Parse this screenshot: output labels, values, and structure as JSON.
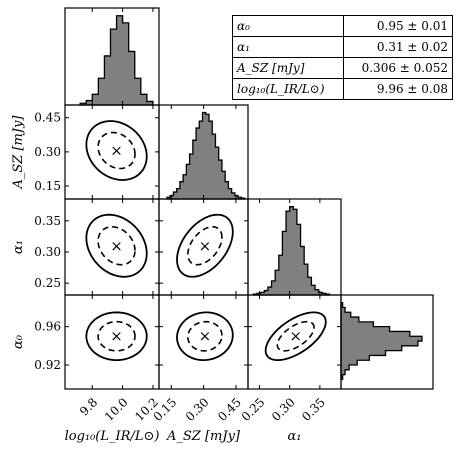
{
  "table": {
    "rows": [
      {
        "name": "α₀",
        "value": "0.95 ± 0.01"
      },
      {
        "name": "α₁",
        "value": "0.31 ± 0.02"
      },
      {
        "name": "A_SZ [mJy]",
        "value": "0.306 ± 0.052"
      },
      {
        "name": "log₁₀(L_IR/L⊙)",
        "value": "9.96 ± 0.08"
      }
    ]
  },
  "chart_data": {
    "type": "corner",
    "params": [
      {
        "key": "logL",
        "label": "log₁₀(L_IR/L⊙)",
        "range": [
          9.62,
          10.24
        ],
        "ticks": [
          9.8,
          10.0,
          10.2
        ],
        "tick_labels": [
          "9.8",
          "10.0",
          "10.2"
        ],
        "mean": 9.96,
        "sigma": 0.08
      },
      {
        "key": "asz",
        "label": "A_SZ [mJy]",
        "range": [
          0.093,
          0.506
        ],
        "ticks": [
          0.15,
          0.3,
          0.45
        ],
        "tick_labels": [
          "0.15",
          "0.30",
          "0.45"
        ],
        "mean": 0.306,
        "sigma": 0.052
      },
      {
        "key": "a1",
        "label": "α₁",
        "range": [
          0.231,
          0.385
        ],
        "ticks": [
          0.25,
          0.3,
          0.35
        ],
        "tick_labels": [
          "0.25",
          "0.30",
          "0.35"
        ],
        "mean": 0.31,
        "sigma": 0.02
      },
      {
        "key": "a0",
        "label": "α₀",
        "range": [
          0.895,
          0.993
        ],
        "ticks": [
          0.92,
          0.96
        ],
        "tick_labels": [
          "0.92",
          "0.96"
        ],
        "mean": 0.95,
        "sigma": 0.01
      }
    ],
    "row_axis_labels": [
      "A_SZ [mJy]",
      "α₁",
      "α₀"
    ],
    "histograms": {
      "logL": {
        "bins": [
          9.72,
          9.76,
          9.8,
          9.84,
          9.88,
          9.92,
          9.96,
          10.0,
          10.04,
          10.08,
          10.12,
          10.16,
          10.2
        ],
        "counts": [
          0.02,
          0.05,
          0.12,
          0.3,
          0.55,
          0.85,
          1.0,
          0.92,
          0.6,
          0.3,
          0.12,
          0.04
        ]
      },
      "asz": {
        "bins": [
          0.13,
          0.145,
          0.16,
          0.175,
          0.19,
          0.205,
          0.22,
          0.235,
          0.25,
          0.265,
          0.28,
          0.295,
          0.31,
          0.325,
          0.34,
          0.355,
          0.37,
          0.385,
          0.4,
          0.415,
          0.43,
          0.445,
          0.46,
          0.475,
          0.49
        ],
        "counts": [
          0.02,
          0.04,
          0.08,
          0.12,
          0.2,
          0.28,
          0.4,
          0.52,
          0.68,
          0.82,
          0.9,
          1.0,
          0.98,
          0.9,
          0.75,
          0.6,
          0.45,
          0.32,
          0.2,
          0.12,
          0.07,
          0.04,
          0.02,
          0.01
        ]
      },
      "a1": {
        "bins": [
          0.24,
          0.246,
          0.252,
          0.258,
          0.264,
          0.27,
          0.276,
          0.282,
          0.288,
          0.294,
          0.3,
          0.306,
          0.312,
          0.318,
          0.324,
          0.33,
          0.336,
          0.342,
          0.348,
          0.354,
          0.36,
          0.366
        ],
        "counts": [
          0.01,
          0.02,
          0.03,
          0.05,
          0.09,
          0.16,
          0.28,
          0.45,
          0.72,
          0.95,
          1.0,
          0.97,
          0.8,
          0.55,
          0.35,
          0.2,
          0.11,
          0.06,
          0.03,
          0.02,
          0.01
        ]
      },
      "a0": {
        "bins": [
          0.905,
          0.91,
          0.915,
          0.92,
          0.925,
          0.93,
          0.935,
          0.94,
          0.945,
          0.95,
          0.955,
          0.96,
          0.965,
          0.97,
          0.975,
          0.98,
          0.985
        ],
        "counts": [
          0.02,
          0.05,
          0.1,
          0.2,
          0.35,
          0.55,
          0.75,
          0.95,
          1.0,
          0.85,
          0.6,
          0.4,
          0.22,
          0.12,
          0.05,
          0.02
        ]
      }
    },
    "contours_2d": [
      {
        "x": "logL",
        "y": "asz",
        "center": [
          9.96,
          0.306
        ],
        "rho": -0.2
      },
      {
        "x": "logL",
        "y": "a1",
        "center": [
          9.96,
          0.31
        ],
        "rho": -0.25
      },
      {
        "x": "asz",
        "y": "a1",
        "center": [
          0.306,
          0.31
        ],
        "rho": 0.45
      },
      {
        "x": "logL",
        "y": "a0",
        "center": [
          9.96,
          0.95
        ],
        "rho": 0.0
      },
      {
        "x": "asz",
        "y": "a0",
        "center": [
          0.306,
          0.95
        ],
        "rho": 0.05
      },
      {
        "x": "a1",
        "y": "a0",
        "center": [
          0.31,
          0.95
        ],
        "rho": 0.6
      }
    ],
    "contour_levels": [
      {
        "nsigma": 1,
        "style": "dashed"
      },
      {
        "nsigma": 2,
        "style": "solid"
      }
    ],
    "marker": "×",
    "colors": {
      "hist_fill": "#808080",
      "line": "#000000",
      "background": "#ffffff"
    }
  }
}
